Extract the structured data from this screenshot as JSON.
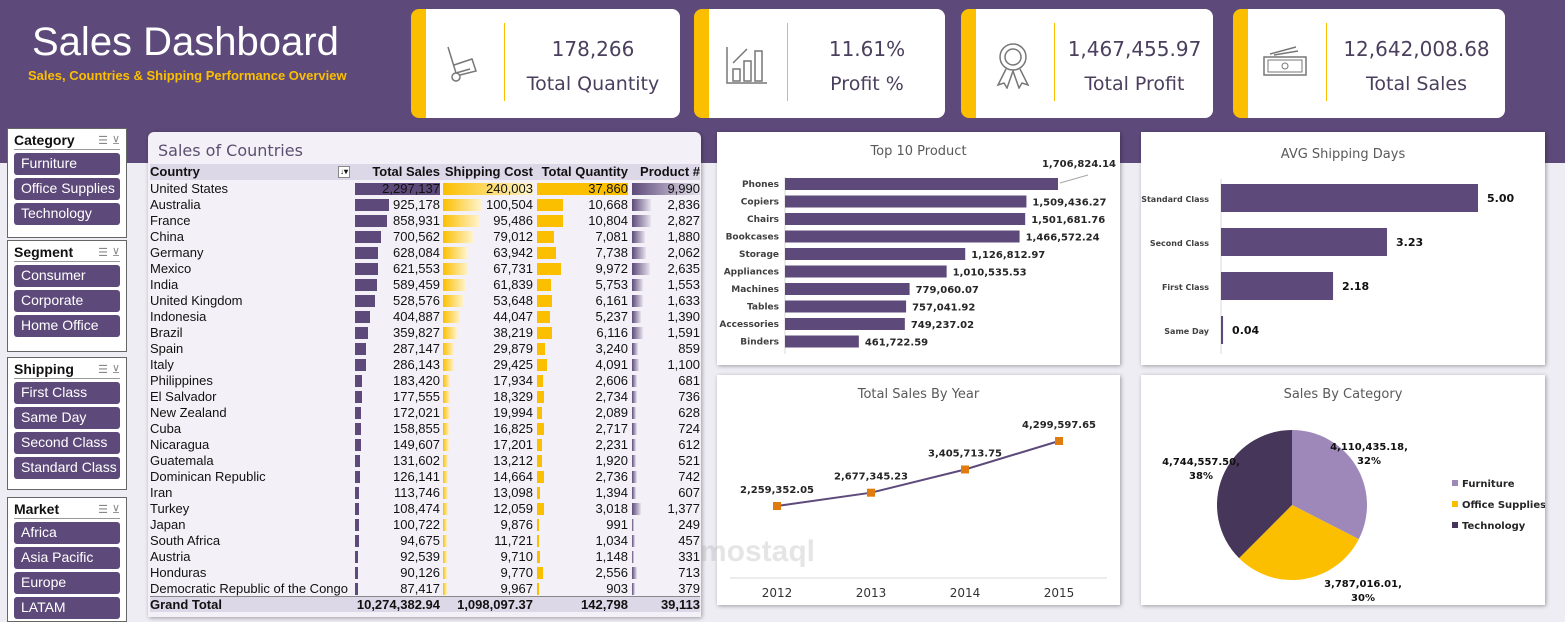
{
  "header": {
    "title": "Sales Dashboard",
    "subtitle": "Sales, Countries & Shipping Performance Overview"
  },
  "kpis": [
    {
      "value": "178,266",
      "label": "Total Quantity",
      "icon": "hand-truck-icon"
    },
    {
      "value": "11.61%",
      "label": "Profit %",
      "icon": "bar-growth-icon"
    },
    {
      "value": "1,467,455.97",
      "label": "Total Profit",
      "icon": "award-ribbon-icon"
    },
    {
      "value": "12,642,008.68",
      "label": "Total Sales",
      "icon": "cash-icon"
    }
  ],
  "slicers": [
    {
      "title": "Category",
      "items": [
        "Furniture",
        "Office Supplies",
        "Technology"
      ]
    },
    {
      "title": "Segment",
      "items": [
        "Consumer",
        "Corporate",
        "Home Office"
      ]
    },
    {
      "title": "Shipping",
      "items": [
        "First Class",
        "Same Day",
        "Second Class",
        "Standard Class"
      ]
    },
    {
      "title": "Market",
      "items": [
        "Africa",
        "Asia Pacific",
        "Europe",
        "LATAM"
      ]
    }
  ],
  "colors": {
    "purple": "#5d4a7a",
    "yellow": "#fbbf00",
    "furniture": "#9e88b9",
    "office_supplies": "#fbbf00",
    "technology": "#45365a"
  },
  "watermark": "مستقل mostaql.com",
  "table": {
    "title": "Sales of Countries",
    "columns": [
      "Country",
      "Total Sales",
      "Shipping Cost",
      "Total Quantity",
      "Product #"
    ],
    "rows": [
      [
        "United States",
        2297137,
        240003,
        37860,
        9990
      ],
      [
        "Australia",
        925178,
        100504,
        10668,
        2836
      ],
      [
        "France",
        858931,
        95486,
        10804,
        2827
      ],
      [
        "China",
        700562,
        79012,
        7081,
        1880
      ],
      [
        "Germany",
        628084,
        63942,
        7738,
        2062
      ],
      [
        "Mexico",
        621553,
        67731,
        9972,
        2635
      ],
      [
        "India",
        589459,
        61839,
        5753,
        1553
      ],
      [
        "United Kingdom",
        528576,
        53648,
        6161,
        1633
      ],
      [
        "Indonesia",
        404887,
        44047,
        5237,
        1390
      ],
      [
        "Brazil",
        359827,
        38219,
        6116,
        1591
      ],
      [
        "Spain",
        287147,
        29879,
        3240,
        859
      ],
      [
        "Italy",
        286143,
        29425,
        4091,
        1100
      ],
      [
        "Philippines",
        183420,
        17934,
        2606,
        681
      ],
      [
        "El Salvador",
        177555,
        18329,
        2734,
        736
      ],
      [
        "New Zealand",
        172021,
        19994,
        2089,
        628
      ],
      [
        "Cuba",
        158855,
        16825,
        2717,
        724
      ],
      [
        "Nicaragua",
        149607,
        17201,
        2231,
        612
      ],
      [
        "Guatemala",
        131602,
        13212,
        1920,
        521
      ],
      [
        "Dominican Republic",
        126141,
        14664,
        2736,
        742
      ],
      [
        "Iran",
        113746,
        13098,
        1394,
        607
      ],
      [
        "Turkey",
        108474,
        12059,
        3018,
        1377
      ],
      [
        "Japan",
        100722,
        9876,
        991,
        249
      ],
      [
        "South Africa",
        94675,
        11721,
        1034,
        457
      ],
      [
        "Austria",
        92539,
        9710,
        1148,
        331
      ],
      [
        "Honduras",
        90126,
        9770,
        2556,
        713
      ],
      [
        "Democratic Republic of the Congo",
        87417,
        9967,
        903,
        379
      ]
    ],
    "grand_total": [
      "Grand Total",
      "10,274,382.94",
      "1,098,097.37",
      "142,798",
      "39,113"
    ]
  },
  "chart_data": [
    {
      "type": "bar",
      "orientation": "horizontal",
      "title": "Top 10 Product",
      "categories": [
        "Phones",
        "Copiers",
        "Chairs",
        "Bookcases",
        "Storage",
        "Appliances",
        "Machines",
        "Tables",
        "Accessories",
        "Binders"
      ],
      "values": [
        1706824.14,
        1509436.27,
        1501681.76,
        1466572.24,
        1126812.97,
        1010535.53,
        779060.07,
        757041.92,
        749237.02,
        461722.59
      ],
      "labels": [
        "1,706,824.14",
        "1,509,436.27",
        "1,501,681.76",
        "1,466,572.24",
        "1,126,812.97",
        "1,010,535.53",
        "779,060.07",
        "757,041.92",
        "749,237.02",
        "461,722.59"
      ]
    },
    {
      "type": "bar",
      "orientation": "horizontal",
      "title": "AVG Shipping Days",
      "categories": [
        "Standard Class",
        "Second Class",
        "First Class",
        "Same Day"
      ],
      "values": [
        5.0,
        3.23,
        2.18,
        0.04
      ],
      "labels": [
        "5.00",
        "3.23",
        "2.18",
        "0.04"
      ]
    },
    {
      "type": "line",
      "title": "Total Sales By Year",
      "categories": [
        "2012",
        "2013",
        "2014",
        "2015"
      ],
      "values": [
        2259352.05,
        2677345.23,
        3405713.75,
        4299597.65
      ],
      "labels": [
        "2,259,352.05",
        "2,677,345.23",
        "3,405,713.75",
        "4,299,597.65"
      ]
    },
    {
      "type": "pie",
      "title": "Sales By Category",
      "categories": [
        "Furniture",
        "Office Supplies",
        "Technology"
      ],
      "values": [
        4110435.18,
        3787016.01,
        4744557.5
      ],
      "labels": [
        "4,110,435.18,",
        "3,787,016.01,",
        "4,744,557.50,"
      ],
      "percents": [
        "32%",
        "30%",
        "38%"
      ],
      "legend": "right"
    }
  ]
}
